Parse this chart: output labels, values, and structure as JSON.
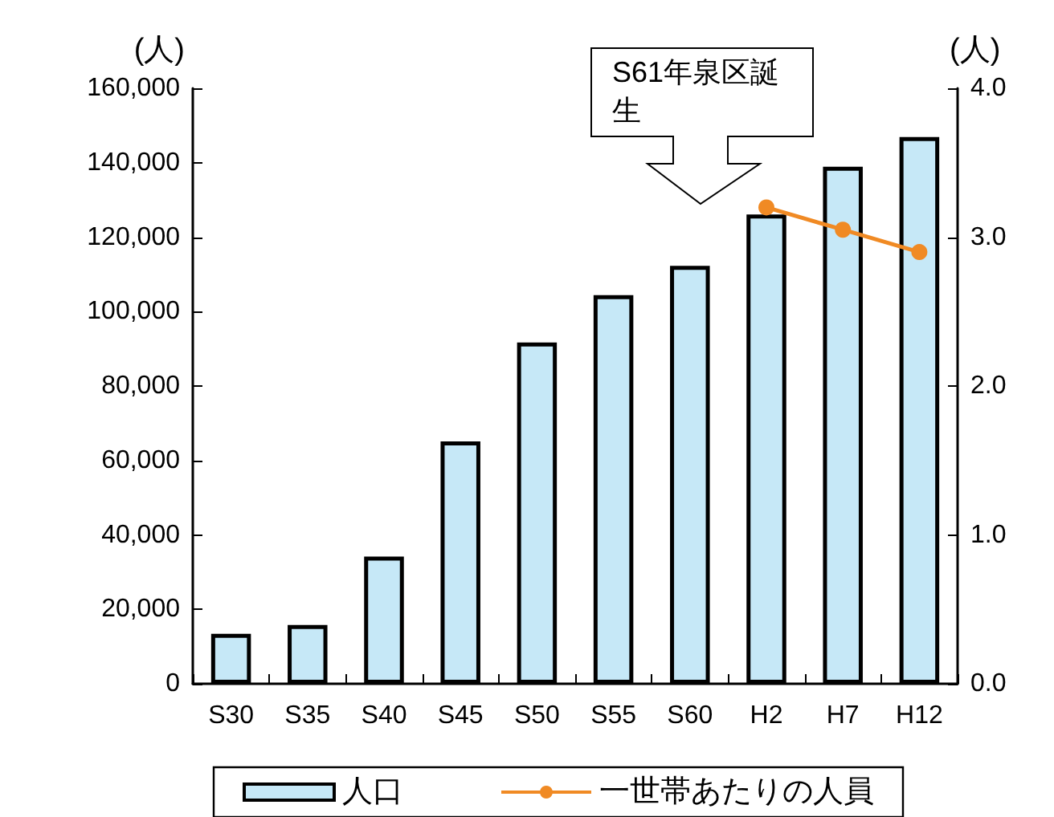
{
  "chart_data": {
    "type": "bar",
    "categories": [
      "S30",
      "S35",
      "S40",
      "S45",
      "S50",
      "S55",
      "S60",
      "H2",
      "H7",
      "H12"
    ],
    "series": [
      {
        "name": "人口",
        "color": "#c6e8f7",
        "values": [
          13400,
          15800,
          34200,
          65100,
          91700,
          104400,
          112300,
          126100,
          138900,
          146900
        ]
      },
      {
        "name": "一世帯あたりの人員",
        "type": "line",
        "axis": "y2",
        "color": "#f08a24",
        "values": [
          null,
          null,
          null,
          null,
          null,
          null,
          null,
          3.2,
          3.05,
          2.9
        ]
      }
    ],
    "ylabel": "(人)",
    "y2label": "(人)",
    "ylim": [
      0,
      160000
    ],
    "yticks": [
      {
        "value": 0,
        "label": "0"
      },
      {
        "value": 20000,
        "label": "20,000"
      },
      {
        "value": 40000,
        "label": "40,000"
      },
      {
        "value": 60000,
        "label": "60,000"
      },
      {
        "value": 80000,
        "label": "80,000"
      },
      {
        "value": 100000,
        "label": "100,000"
      },
      {
        "value": 120000,
        "label": "120,000"
      },
      {
        "value": 140000,
        "label": "140,000"
      },
      {
        "value": 160000,
        "label": "160,000"
      }
    ],
    "y2lim": [
      0,
      4
    ],
    "y2ticks": [
      {
        "value": 0,
        "label": "0.0"
      },
      {
        "value": 1,
        "label": "1.0"
      },
      {
        "value": 2,
        "label": "2.0"
      },
      {
        "value": 3,
        "label": "3.0"
      },
      {
        "value": 4,
        "label": "4.0"
      }
    ],
    "annotations": [
      "S61年泉区誕生"
    ],
    "legend": "bottom",
    "grid": false,
    "marker": "circle",
    "line_style": "solid"
  }
}
